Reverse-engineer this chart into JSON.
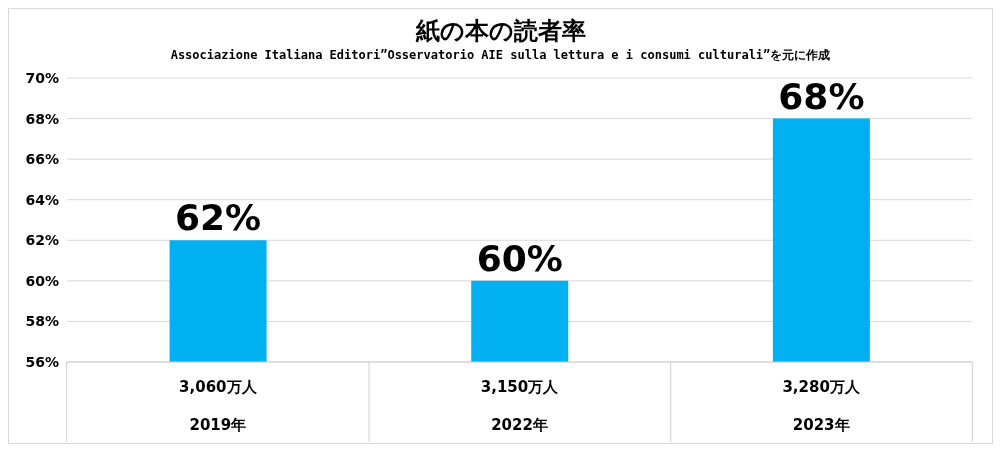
{
  "chart_data": {
    "type": "bar",
    "title": "紙の本の読者率",
    "subtitle": "Associazione Italiana Editori”Osservatorio AIE sulla lettura e i consumi culturali”を元に作成",
    "categories": [
      "2019年",
      "2022年",
      "2023年"
    ],
    "values": [
      62,
      60,
      68
    ],
    "color": "#00b0f0",
    "value_labels": [
      "62%",
      "60%",
      "68%"
    ],
    "annotations": [
      "3,060万人",
      "3,150万人",
      "3,280万人"
    ],
    "ylim": [
      56,
      70
    ],
    "yticks": [
      {
        "value": 56,
        "label": "56%"
      },
      {
        "value": 58,
        "label": "58%"
      },
      {
        "value": 60,
        "label": "60%"
      },
      {
        "value": 62,
        "label": "62%"
      },
      {
        "value": 64,
        "label": "64%"
      },
      {
        "value": 66,
        "label": "66%"
      },
      {
        "value": 68,
        "label": "68%"
      },
      {
        "value": 70,
        "label": "70%"
      }
    ],
    "grid": "y"
  }
}
